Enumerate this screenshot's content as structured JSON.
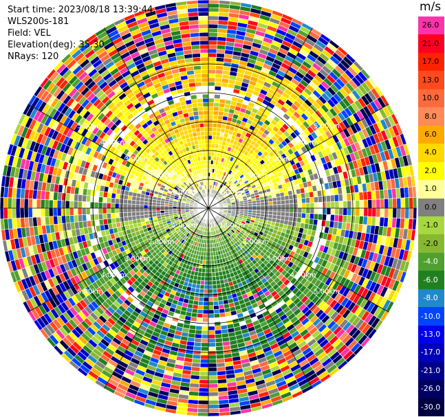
{
  "header": {
    "start_time": "Start time: 2023/08/18 13:39:44",
    "instrument": "WLS200s-181",
    "field": "Field: VEL",
    "elevation": "Elevation(deg): 35.30",
    "nrays": "NRays: 120"
  },
  "ppi": {
    "range_rings_km": [
      1.0,
      2.0,
      3.0,
      4.0,
      5.0
    ],
    "ring_label_text": [
      "1.00km",
      "2.00km",
      "3.00km",
      "4.00km",
      "5.00km"
    ],
    "ring_label_angles_deg": [
      55,
      125,
      235,
      305
    ],
    "spoke_angles_deg": [
      0,
      30,
      60,
      90,
      120,
      150,
      180,
      210,
      240,
      270,
      300,
      330
    ],
    "ring_color": "#000000",
    "spoke_color": "#000000"
  },
  "colorbar": {
    "unit": "m/s",
    "labels": [
      "26.0",
      "21.0",
      "17.0",
      "13.0",
      "10.0",
      "8.0",
      "6.0",
      "4.0",
      "2.0",
      "1.0",
      "0.0",
      "-1.0",
      "-2.0",
      "-4.0",
      "-6.0",
      "-8.0",
      "-10.0",
      "-13.0",
      "-17.0",
      "-21.0",
      "-26.0",
      "-30.0"
    ],
    "colors": [
      "#ff33aa",
      "#ff0022",
      "#ff2200",
      "#ff4a1e",
      "#ff6a3c",
      "#ff8a5a",
      "#ffaa00",
      "#ffd800",
      "#ffff00",
      "#ffff99",
      "#808080",
      "#a8d840",
      "#88b830",
      "#50a030",
      "#208020",
      "#2088cc",
      "#0044ff",
      "#0000ee",
      "#0000bb",
      "#000088",
      "#000060",
      "#000040"
    ],
    "label_colors": [
      "#000",
      "#000",
      "#000",
      "#000",
      "#000",
      "#000",
      "#000",
      "#000",
      "#000",
      "#000",
      "#000",
      "#000",
      "#000",
      "#fff",
      "#fff",
      "#fff",
      "#fff",
      "#fff",
      "#fff",
      "#fff",
      "#fff",
      "#fff"
    ]
  }
}
